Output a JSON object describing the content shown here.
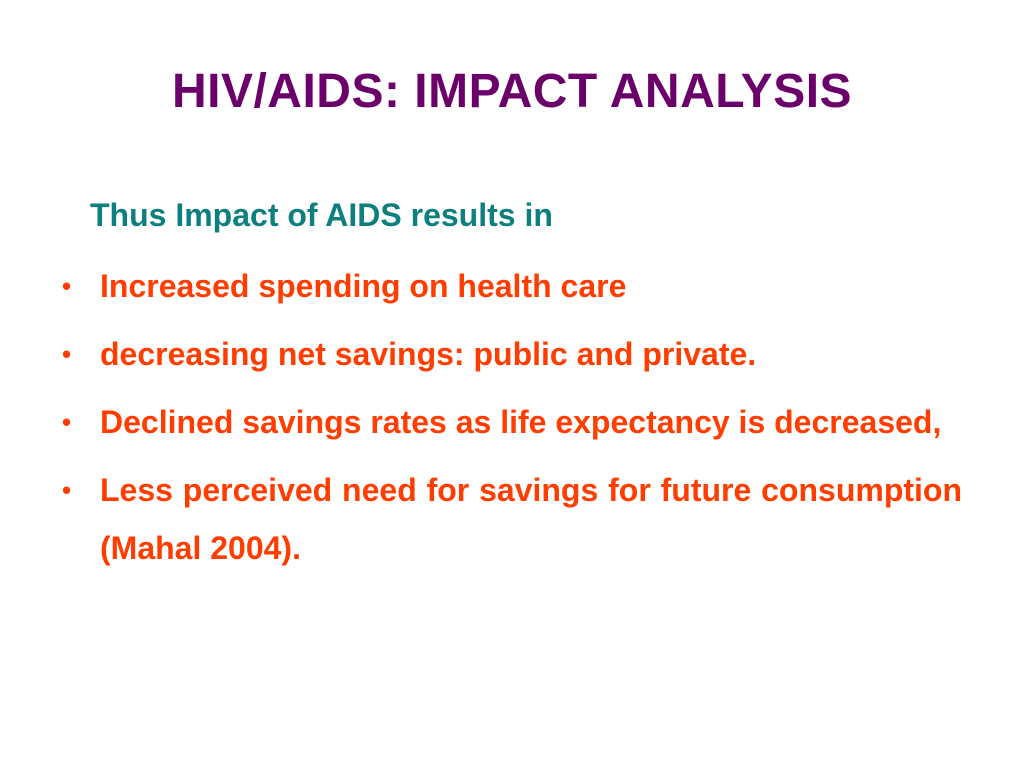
{
  "slide": {
    "title": "HIV/AIDS: IMPACT ANALYSIS",
    "intro": "Thus Impact of AIDS results in",
    "bullet_symbol": "•",
    "bullets": [
      "Increased spending on health care",
      "decreasing net savings: public and private.",
      "Declined savings rates as life expectancy is decreased,",
      "Less perceived need for savings for future consumption (Mahal 2004)."
    ]
  },
  "colors": {
    "background": "#ffffff",
    "title": "#6b006b",
    "intro": "#0d7f7f",
    "bullets": "#ff3d00"
  }
}
